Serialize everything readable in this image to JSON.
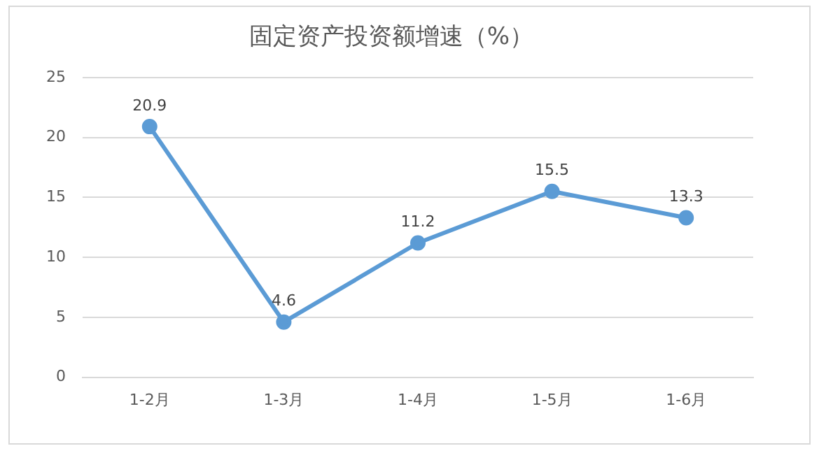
{
  "chart_data": {
    "type": "line",
    "title": "固定资产投资额增速（%）",
    "categories": [
      "1-2月",
      "1-3月",
      "1-4月",
      "1-5月",
      "1-6月"
    ],
    "series": [
      {
        "color": "#5b9bd5",
        "values": [
          20.9,
          4.6,
          11.2,
          15.5,
          13.3
        ]
      }
    ],
    "ylim": [
      0,
      25
    ],
    "yticks": [
      0,
      5,
      10,
      15,
      20,
      25
    ],
    "grid": "y",
    "marker": "circle",
    "data_labels": true,
    "legend": false
  }
}
